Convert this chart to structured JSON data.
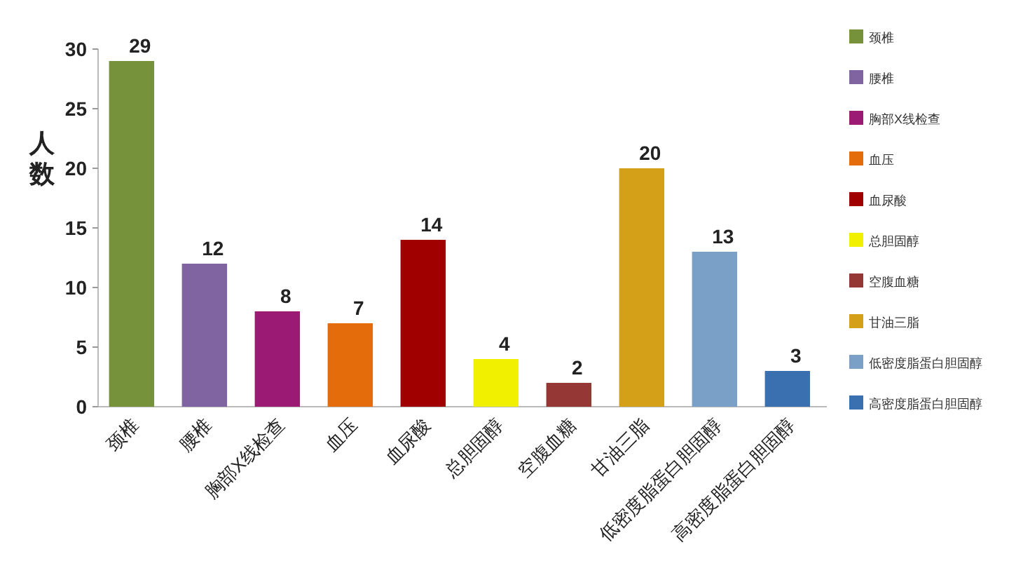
{
  "chart_data": {
    "type": "bar",
    "ylabel": "人数",
    "categories": [
      "颈椎",
      "腰椎",
      "胸部X线检查",
      "血压",
      "血尿酸",
      "总胆固醇",
      "空腹血糖",
      "甘油三脂",
      "低密度脂蛋白胆固醇",
      "高密度脂蛋白胆固醇"
    ],
    "series": [
      {
        "name": "颈椎",
        "color": "#76933c",
        "values": [
          29,
          null,
          null,
          null,
          null,
          null,
          null,
          null,
          null,
          null
        ]
      },
      {
        "name": "腰椎",
        "color": "#8064a2",
        "values": [
          null,
          12,
          null,
          null,
          null,
          null,
          null,
          null,
          null,
          null
        ]
      },
      {
        "name": "胸部X线检查",
        "color": "#9b1b74",
        "values": [
          null,
          null,
          8,
          null,
          null,
          null,
          null,
          null,
          null,
          null
        ]
      },
      {
        "name": "血压",
        "color": "#e46c0a",
        "values": [
          null,
          null,
          null,
          7,
          null,
          null,
          null,
          null,
          null,
          null
        ]
      },
      {
        "name": "血尿酸",
        "color": "#a00000",
        "values": [
          null,
          null,
          null,
          null,
          14,
          null,
          null,
          null,
          null,
          null
        ]
      },
      {
        "name": "总胆固醇",
        "color": "#f0f000",
        "values": [
          null,
          null,
          null,
          null,
          null,
          4,
          null,
          null,
          null,
          null
        ]
      },
      {
        "name": "空腹血糖",
        "color": "#953735",
        "values": [
          null,
          null,
          null,
          null,
          null,
          null,
          2,
          null,
          null,
          null
        ]
      },
      {
        "name": "甘油三脂",
        "color": "#d4a017",
        "values": [
          null,
          null,
          null,
          null,
          null,
          null,
          null,
          20,
          null,
          null
        ]
      },
      {
        "name": "低密度脂蛋白胆固醇",
        "color": "#7ba0c8",
        "values": [
          null,
          null,
          null,
          null,
          null,
          null,
          null,
          null,
          13,
          null
        ]
      },
      {
        "name": "高密度脂蛋白胆固醇",
        "color": "#3a6fb0",
        "values": [
          null,
          null,
          null,
          null,
          null,
          null,
          null,
          null,
          null,
          3
        ]
      }
    ],
    "ylim": [
      0,
      30
    ],
    "yticks": [
      0,
      5,
      10,
      15,
      20,
      25,
      30
    ],
    "data_labels": true,
    "legend": "right"
  }
}
